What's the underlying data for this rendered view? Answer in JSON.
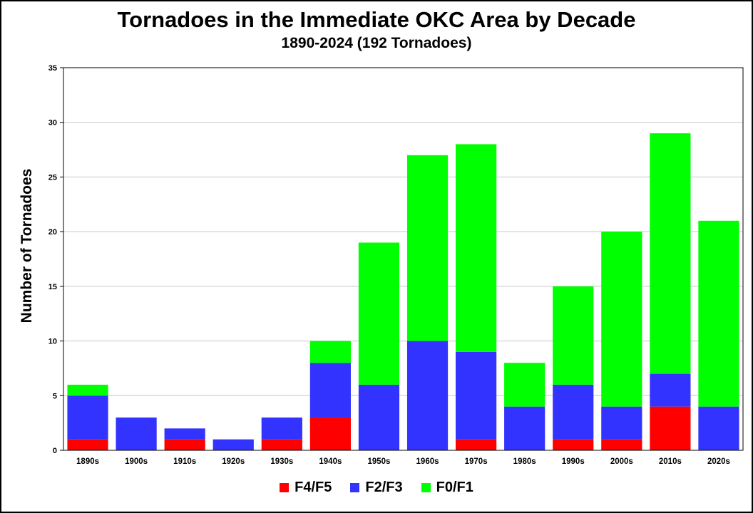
{
  "chart_data": {
    "type": "bar",
    "stacked": true,
    "title": "Tornadoes in the Immediate OKC Area by Decade",
    "subtitle": "1890-2024 (192 Tornadoes)",
    "xlabel": "",
    "ylabel": "Number of Tornadoes",
    "ylim": [
      0,
      35
    ],
    "yticks": [
      0,
      5,
      10,
      15,
      20,
      25,
      30,
      35
    ],
    "grid": true,
    "legend_position": "bottom",
    "categories": [
      "1890s",
      "1900s",
      "1910s",
      "1920s",
      "1930s",
      "1940s",
      "1950s",
      "1960s",
      "1970s",
      "1980s",
      "1990s",
      "2000s",
      "2010s",
      "2020s"
    ],
    "series": [
      {
        "name": "F4/F5",
        "color": "#ff0000",
        "values": [
          1,
          0,
          1,
          0,
          1,
          3,
          0,
          0,
          1,
          0,
          1,
          1,
          4,
          0
        ]
      },
      {
        "name": "F2/F3",
        "color": "#3333ff",
        "values": [
          4,
          3,
          1,
          1,
          2,
          5,
          6,
          10,
          8,
          4,
          5,
          3,
          3,
          4
        ]
      },
      {
        "name": "F0/F1",
        "color": "#00ff00",
        "values": [
          1,
          0,
          0,
          0,
          0,
          2,
          13,
          17,
          19,
          4,
          9,
          16,
          22,
          17
        ]
      }
    ]
  }
}
